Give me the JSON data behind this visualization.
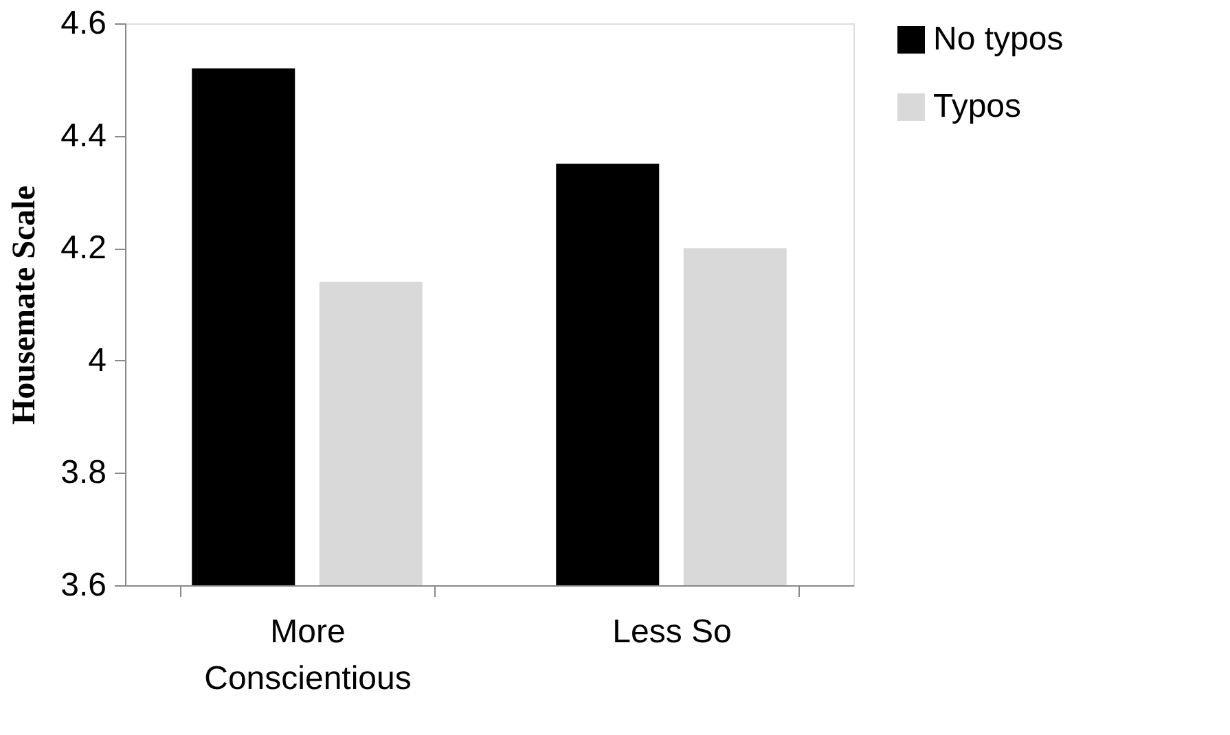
{
  "chart_data": {
    "type": "bar",
    "ylabel": "Housemate Scale",
    "categories": [
      "More Conscientious",
      "Less So"
    ],
    "series": [
      {
        "name": "No typos",
        "color": "#000000",
        "values": [
          4.52,
          4.35
        ]
      },
      {
        "name": "Typos",
        "color": "#d9d9d9",
        "values": [
          4.14,
          4.2
        ]
      }
    ],
    "ylim": [
      3.6,
      4.6
    ],
    "yticks": [
      3.6,
      3.8,
      4,
      4.2,
      4.4,
      4.6
    ],
    "grid": false,
    "legend": "right"
  }
}
